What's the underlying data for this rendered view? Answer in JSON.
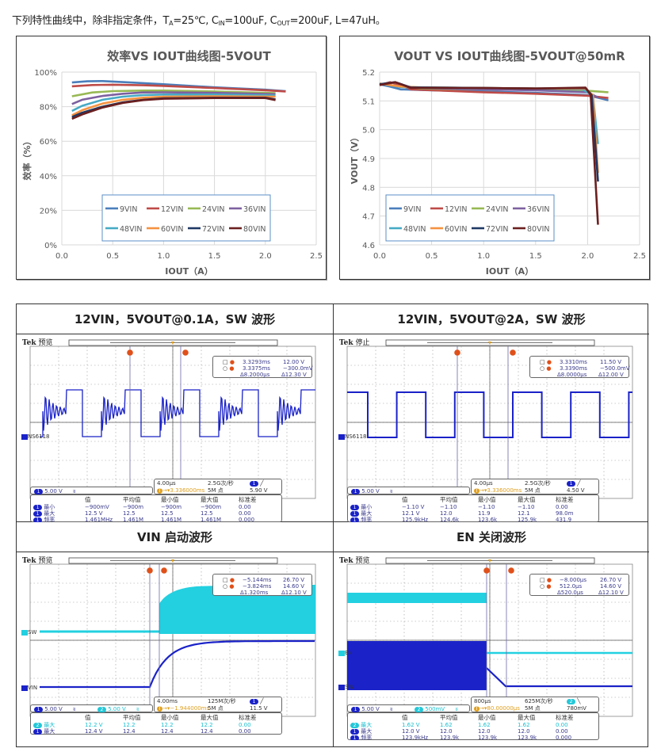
{
  "caption": {
    "prefix": "下列特性曲线中，除非指定条件，",
    "t": "T",
    "t_sub": "A",
    "t_val": "=25℃, C",
    "cin_sub": "IN",
    "cin_val": "=100uF, C",
    "cout_sub": "OUT",
    "cout_val": "=200uF, L=47uH。"
  },
  "chart_data": [
    {
      "type": "line",
      "title": "效率VS IOUT曲线图-5VOUT",
      "xlabel": "IOUT（A）",
      "ylabel": "效率（%）",
      "xlim": [
        0,
        2.5
      ],
      "ylim": [
        0,
        1
      ],
      "xticks": [
        "0.0",
        "0.5",
        "1.0",
        "1.5",
        "2.0",
        "2.5"
      ],
      "yticks": [
        "0%",
        "20%",
        "40%",
        "60%",
        "80%",
        "100%"
      ],
      "grid": true,
      "legend": "bottom-center inside",
      "series": [
        {
          "name": "9VIN",
          "color": "#4a7ebb",
          "points": [
            [
              0.1,
              0.94
            ],
            [
              0.25,
              0.947
            ],
            [
              0.4,
              0.948
            ],
            [
              0.6,
              0.942
            ],
            [
              1.0,
              0.93
            ],
            [
              1.5,
              0.912
            ],
            [
              2.0,
              0.898
            ],
            [
              2.2,
              0.89
            ]
          ]
        },
        {
          "name": "12VIN",
          "color": "#be4b48",
          "points": [
            [
              0.1,
              0.918
            ],
            [
              0.3,
              0.925
            ],
            [
              0.5,
              0.927
            ],
            [
              0.8,
              0.924
            ],
            [
              1.0,
              0.92
            ],
            [
              1.5,
              0.908
            ],
            [
              2.0,
              0.895
            ],
            [
              2.2,
              0.888
            ]
          ]
        },
        {
          "name": "24VIN",
          "color": "#98b954",
          "points": [
            [
              0.1,
              0.86
            ],
            [
              0.3,
              0.882
            ],
            [
              0.5,
              0.89
            ],
            [
              0.8,
              0.893
            ],
            [
              1.0,
              0.893
            ],
            [
              1.5,
              0.888
            ],
            [
              2.1,
              0.878
            ]
          ]
        },
        {
          "name": "36VIN",
          "color": "#7d60a0",
          "points": [
            [
              0.1,
              0.815
            ],
            [
              0.2,
              0.84
            ],
            [
              0.4,
              0.862
            ],
            [
              0.6,
              0.875
            ],
            [
              0.8,
              0.882
            ],
            [
              1.0,
              0.883
            ],
            [
              1.5,
              0.88
            ],
            [
              2.1,
              0.872
            ]
          ]
        },
        {
          "name": "48VIN",
          "color": "#46aac5",
          "points": [
            [
              0.1,
              0.775
            ],
            [
              0.2,
              0.805
            ],
            [
              0.4,
              0.84
            ],
            [
              0.6,
              0.858
            ],
            [
              0.8,
              0.867
            ],
            [
              1.0,
              0.87
            ],
            [
              1.5,
              0.87
            ],
            [
              2.1,
              0.865
            ]
          ]
        },
        {
          "name": "60VIN",
          "color": "#f69240",
          "points": [
            [
              0.1,
              0.75
            ],
            [
              0.2,
              0.78
            ],
            [
              0.4,
              0.818
            ],
            [
              0.6,
              0.84
            ],
            [
              0.8,
              0.852
            ],
            [
              1.0,
              0.858
            ],
            [
              1.5,
              0.86
            ],
            [
              2.1,
              0.858
            ]
          ]
        },
        {
          "name": "72VIN",
          "color": "#1f3864",
          "points": [
            [
              0.1,
              0.74
            ],
            [
              0.2,
              0.765
            ],
            [
              0.4,
              0.8
            ],
            [
              0.6,
              0.825
            ],
            [
              0.8,
              0.84
            ],
            [
              1.0,
              0.848
            ],
            [
              1.5,
              0.852
            ],
            [
              2.0,
              0.852
            ],
            [
              2.1,
              0.842
            ]
          ]
        },
        {
          "name": "80VIN",
          "color": "#6b1f1f",
          "points": [
            [
              0.1,
              0.73
            ],
            [
              0.2,
              0.755
            ],
            [
              0.4,
              0.795
            ],
            [
              0.6,
              0.822
            ],
            [
              0.8,
              0.838
            ],
            [
              1.0,
              0.846
            ],
            [
              1.5,
              0.85
            ],
            [
              2.0,
              0.85
            ],
            [
              2.1,
              0.838
            ]
          ]
        }
      ]
    },
    {
      "type": "line",
      "title": "VOUT VS IOUT曲线图-5VOUT@50mR",
      "xlabel": "IOUT（A）",
      "ylabel": "VOUT（V）",
      "xlim": [
        0,
        2.5
      ],
      "ylim": [
        4.6,
        5.2
      ],
      "xticks": [
        "0.0",
        "0.5",
        "1.0",
        "1.5",
        "2.0",
        "2.5"
      ],
      "yticks": [
        "4.6",
        "4.7",
        "4.8",
        "4.9",
        "5.0",
        "5.1",
        "5.2"
      ],
      "grid": true,
      "legend": "bottom-center inside",
      "series": [
        {
          "name": "9VIN",
          "color": "#4a7ebb",
          "points": [
            [
              0.0,
              5.158
            ],
            [
              0.1,
              5.15
            ],
            [
              0.2,
              5.14
            ],
            [
              0.5,
              5.137
            ],
            [
              1.0,
              5.133
            ],
            [
              1.5,
              5.128
            ],
            [
              2.0,
              5.12
            ],
            [
              2.2,
              5.102
            ]
          ]
        },
        {
          "name": "12VIN",
          "color": "#be4b48",
          "points": [
            [
              0.0,
              5.155
            ],
            [
              0.1,
              5.165
            ],
            [
              0.2,
              5.155
            ],
            [
              0.3,
              5.14
            ],
            [
              1.0,
              5.13
            ],
            [
              1.5,
              5.125
            ],
            [
              2.0,
              5.118
            ],
            [
              2.2,
              5.11
            ]
          ]
        },
        {
          "name": "24VIN",
          "color": "#98b954",
          "points": [
            [
              0.0,
              5.16
            ],
            [
              0.2,
              5.15
            ],
            [
              0.4,
              5.143
            ],
            [
              1.0,
              5.14
            ],
            [
              1.5,
              5.138
            ],
            [
              2.0,
              5.135
            ],
            [
              2.2,
              5.13
            ]
          ]
        },
        {
          "name": "36VIN",
          "color": "#7d60a0",
          "points": [
            [
              0.0,
              5.16
            ],
            [
              0.2,
              5.15
            ],
            [
              0.4,
              5.145
            ],
            [
              1.0,
              5.14
            ],
            [
              1.5,
              5.137
            ],
            [
              2.0,
              5.13
            ],
            [
              2.1,
              5.112
            ]
          ]
        },
        {
          "name": "48VIN",
          "color": "#46aac5",
          "points": [
            [
              0.0,
              5.16
            ],
            [
              0.2,
              5.148
            ],
            [
              0.4,
              5.147
            ],
            [
              1.0,
              5.145
            ],
            [
              1.5,
              5.143
            ],
            [
              1.95,
              5.14
            ],
            [
              2.05,
              5.12
            ],
            [
              2.1,
              4.95
            ]
          ]
        },
        {
          "name": "60VIN",
          "color": "#f69240",
          "points": [
            [
              0.0,
              5.16
            ],
            [
              0.2,
              5.15
            ],
            [
              0.4,
              5.147
            ],
            [
              1.0,
              5.145
            ],
            [
              1.5,
              5.143
            ],
            [
              1.98,
              5.142
            ],
            [
              2.05,
              5.12
            ],
            [
              2.1,
              4.85
            ]
          ]
        },
        {
          "name": "72VIN",
          "color": "#1f3864",
          "points": [
            [
              0.0,
              5.158
            ],
            [
              0.15,
              5.165
            ],
            [
              0.3,
              5.147
            ],
            [
              1.0,
              5.145
            ],
            [
              1.5,
              5.143
            ],
            [
              1.98,
              5.145
            ],
            [
              2.04,
              5.12
            ],
            [
              2.1,
              4.82
            ]
          ]
        },
        {
          "name": "80VIN",
          "color": "#6b1f1f",
          "points": [
            [
              0.0,
              5.155
            ],
            [
              0.15,
              5.165
            ],
            [
              0.3,
              5.145
            ],
            [
              1.0,
              5.145
            ],
            [
              1.5,
              5.143
            ],
            [
              1.98,
              5.146
            ],
            [
              2.03,
              5.12
            ],
            [
              2.1,
              4.67
            ]
          ]
        }
      ]
    }
  ],
  "scopes": [
    {
      "title": "12VIN，5VOUT@0.1A，SW 波形",
      "brand": "Tek",
      "status": "预览",
      "traces": [
        {
          "ch": "1",
          "label": "NS6118"
        }
      ],
      "cursor": {
        "a_time": "3.3293ms",
        "a_volt": "12.00 V",
        "b_time": "3.3375ms",
        "b_volt": "−300.0mV",
        "d_time": "Δ8.2000µs",
        "d_volt": "Δ12.30 V"
      },
      "channels": [
        {
          "ch": "1",
          "scale": "5.00 V"
        }
      ],
      "timebase": {
        "div": "4.00µs",
        "rate": "2.5G次/秒",
        "position": "3.336000ms",
        "points": "5M 点",
        "trig_ch": "1",
        "trig_level": "5.90 V"
      },
      "meas_headers": [
        "值",
        "平均值",
        "最小值",
        "最大值",
        "标准差"
      ],
      "meas_rows": [
        {
          "ch": "1",
          "name": "最小",
          "values": [
            "−900mV",
            "−900m",
            "−900m",
            "−900m",
            "0.00"
          ]
        },
        {
          "ch": "1",
          "name": "最大",
          "values": [
            "12.5 V",
            "12.5",
            "12.5",
            "12.5",
            "0.00"
          ]
        },
        {
          "ch": "1",
          "name": "频率",
          "values": [
            "1.461MHz",
            "1.461M",
            "1.461M",
            "1.461M",
            "0.000"
          ]
        }
      ]
    },
    {
      "title": "12VIN，5VOUT@2A，SW 波形",
      "brand": "Tek",
      "status": "停止",
      "traces": [
        {
          "ch": "1",
          "label": "NS6118"
        }
      ],
      "cursor": {
        "a_time": "3.3310ms",
        "a_volt": "11.50 V",
        "b_time": "3.3390ms",
        "b_volt": "−500.0mV",
        "d_time": "Δ8.0000µs",
        "d_volt": "Δ12.00 V"
      },
      "channels": [
        {
          "ch": "1",
          "scale": "5.00 V"
        }
      ],
      "timebase": {
        "div": "4.00µs",
        "rate": "2.5G次/秒",
        "position": "3.336000ms",
        "points": "5M 点",
        "trig_ch": "1",
        "trig_level": "4.50 V"
      },
      "meas_headers": [
        "值",
        "平均值",
        "最小值",
        "最大值",
        "标准差"
      ],
      "meas_rows": [
        {
          "ch": "1",
          "name": "最小",
          "values": [
            "−1.10 V",
            "−1.10",
            "−1.10",
            "−1.10",
            "0.00"
          ]
        },
        {
          "ch": "1",
          "name": "最大",
          "values": [
            "12.1 V",
            "12.0",
            "11.9",
            "12.1",
            "98.0m"
          ]
        },
        {
          "ch": "1",
          "name": "频率",
          "values": [
            "125.9kHz",
            "124.6k",
            "123.6k",
            "125.9k",
            "431.9"
          ]
        }
      ]
    },
    {
      "title": "VIN 启动波形",
      "brand": "Tek",
      "status": "预览",
      "traces": [
        {
          "ch": "2",
          "label": "SW"
        },
        {
          "ch": "1",
          "label": "VIN"
        }
      ],
      "cursor": {
        "a_time": "−5.144ms",
        "a_volt": "26.70 V",
        "b_time": "−3.824ms",
        "b_volt": "14.60 V",
        "d_time": "Δ1.320ms",
        "d_volt": "Δ12.10 V"
      },
      "channels": [
        {
          "ch": "1",
          "scale": "5.00 V"
        },
        {
          "ch": "2",
          "scale": "5.00 V"
        }
      ],
      "timebase": {
        "div": "4.00ms",
        "rate": "125M次/秒",
        "position": "−1.944000ms",
        "points": "5M 点",
        "trig_ch": "1",
        "trig_level": "11.5 V"
      },
      "meas_headers": [
        "值",
        "平均值",
        "最小值",
        "最大值",
        "标准差"
      ],
      "meas_rows": [
        {
          "ch": "2",
          "name": "最大",
          "values": [
            "12.2 V",
            "12.2",
            "12.2",
            "12.2",
            "0.00"
          ]
        },
        {
          "ch": "1",
          "name": "最大",
          "values": [
            "12.4 V",
            "12.4",
            "12.4",
            "12.4",
            "0.00"
          ]
        }
      ]
    },
    {
      "title": "EN 关闭波形",
      "brand": "Tek",
      "status": "预览",
      "traces": [
        {
          "ch": "2",
          "label": "EN"
        },
        {
          "ch": "1",
          "label": "SW"
        }
      ],
      "cursor": {
        "a_time": "−8.000µs",
        "a_volt": "26.70 V",
        "b_time": "512.0µs",
        "b_volt": "14.60 V",
        "d_time": "Δ520.0µs",
        "d_volt": "Δ12.10 V"
      },
      "channels": [
        {
          "ch": "1",
          "scale": "5.00 V"
        },
        {
          "ch": "2",
          "scale": "500mV"
        }
      ],
      "timebase": {
        "div": "800µs",
        "rate": "625M次/秒",
        "position": "80.00000µs",
        "points": "5M 点",
        "trig_ch": "2",
        "trig_level": "780mV"
      },
      "meas_headers": [
        "值",
        "平均值",
        "最小值",
        "最大值",
        "标准差"
      ],
      "meas_rows": [
        {
          "ch": "2",
          "name": "最大",
          "values": [
            "1.62 V",
            "1.62",
            "1.62",
            "1.62",
            "0.00"
          ]
        },
        {
          "ch": "1",
          "name": "最大",
          "values": [
            "12.0 V",
            "12.0",
            "12.0",
            "12.0",
            "0.00"
          ]
        },
        {
          "ch": "1",
          "name": "频率",
          "values": [
            "123.9kHz",
            "123.9k",
            "123.9k",
            "123.9k",
            "0.000"
          ]
        }
      ]
    }
  ],
  "colors": {
    "ch1": "#1a22c8",
    "ch2": "#22d0e0",
    "cursor": "#e0501a",
    "trigger": "#e0a020"
  }
}
